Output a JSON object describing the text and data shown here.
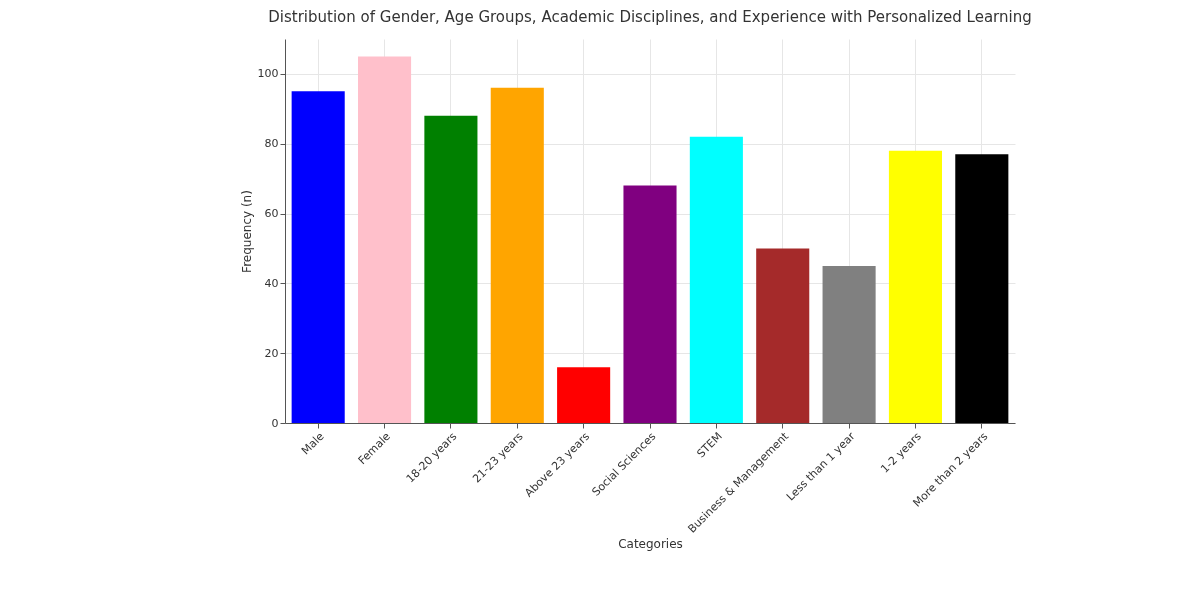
{
  "chart_data": {
    "type": "bar",
    "title": "Distribution of Gender, Age Groups, Academic Disciplines, and Experience with Personalized Learning",
    "xlabel": "Categories",
    "ylabel": "Frequency (n)",
    "categories": [
      "Male",
      "Female",
      "18-20 years",
      "21-23 years",
      "Above 23 years",
      "Social Sciences",
      "STEM",
      "Business & Management",
      "Less than 1 year",
      "1-2 years",
      "More than 2 years"
    ],
    "values": [
      95,
      105,
      88,
      96,
      16,
      68,
      82,
      50,
      45,
      78,
      77
    ],
    "colors": [
      "#0000ff",
      "#ffc0cb",
      "#008000",
      "#ffa500",
      "#ff0000",
      "#800080",
      "#00ffff",
      "#a52a2a",
      "#808080",
      "#ffff00",
      "#000000"
    ],
    "ylim": [
      0,
      110
    ],
    "yticks": [
      0,
      20,
      40,
      60,
      80,
      100
    ],
    "grid": true
  }
}
